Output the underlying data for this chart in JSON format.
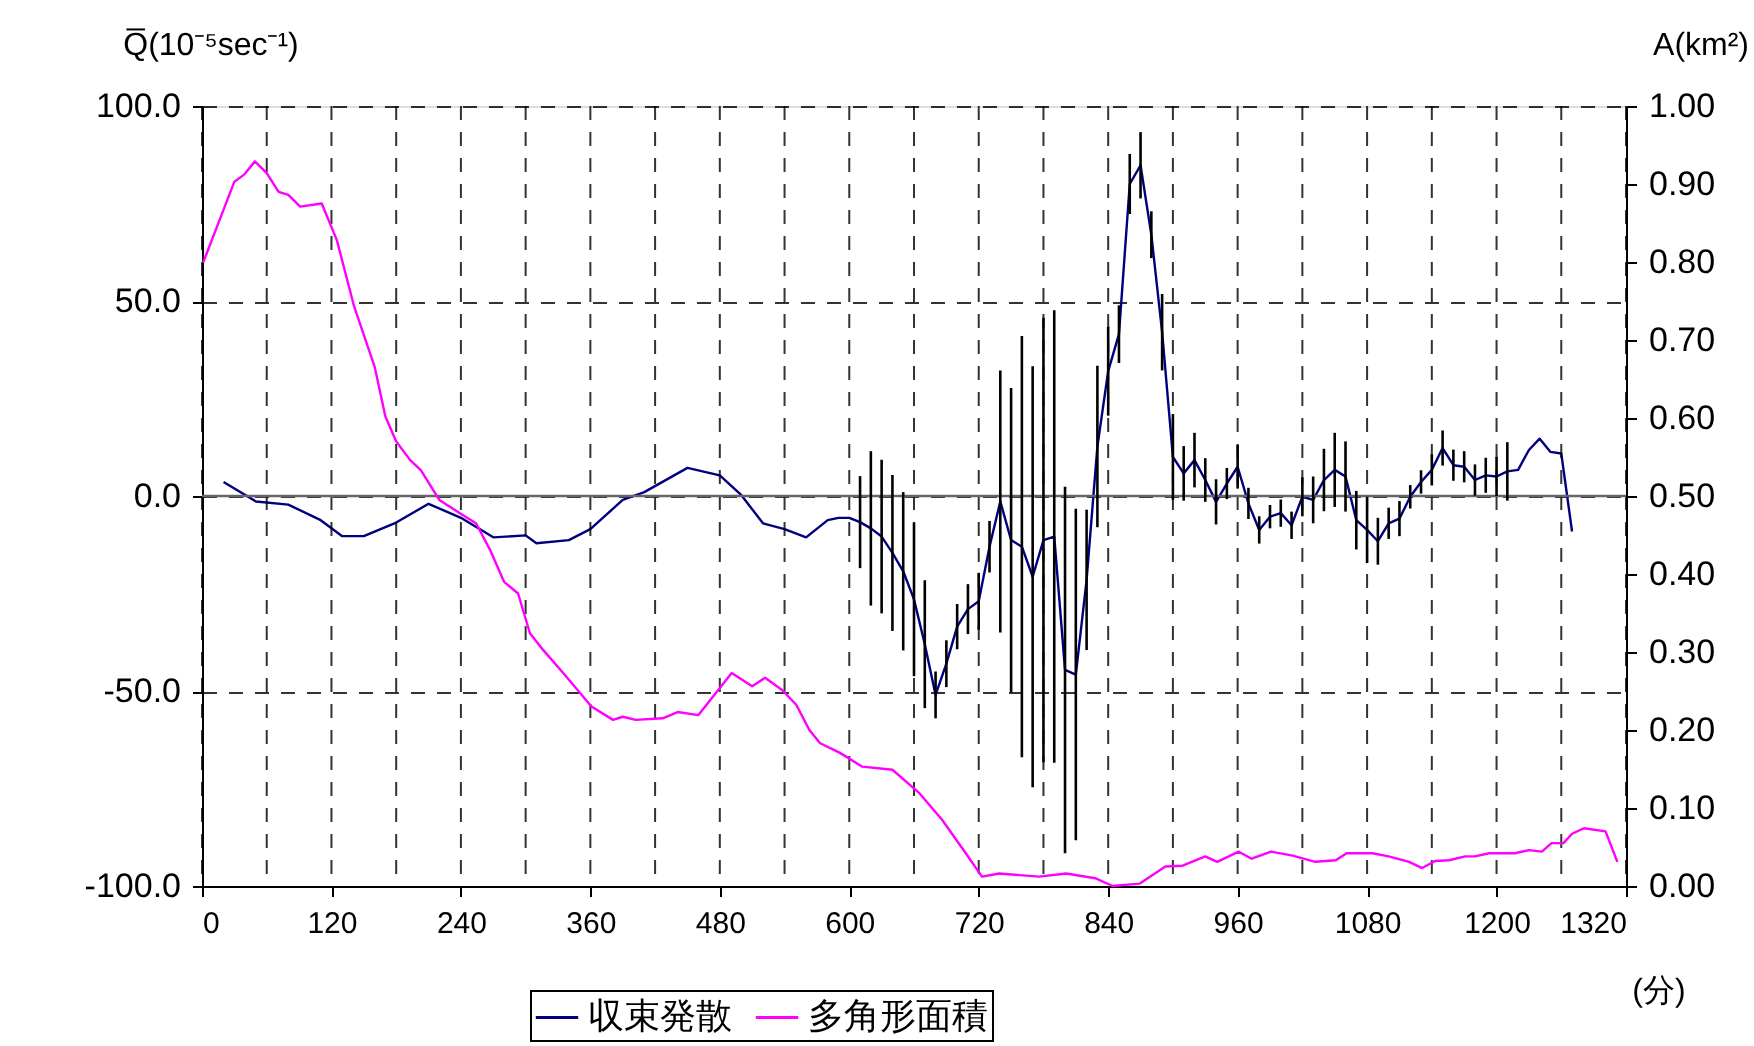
{
  "chart_data": {
    "type": "line",
    "ylabel": "Q̅(10⁻⁵sec⁻¹)",
    "y2label": "A(km²)",
    "xlabel": "(分)",
    "xlim": [
      0,
      1320
    ],
    "xticks": [
      0,
      {
        "value": 60,
        "label": null
      },
      120,
      {
        "value": 180,
        "label": null
      },
      240,
      {
        "value": 300,
        "label": null
      },
      360,
      {
        "value": 420,
        "label": null
      },
      480,
      {
        "value": 540,
        "label": null
      },
      600,
      {
        "value": 660,
        "label": null
      },
      720,
      {
        "value": 780,
        "label": null
      },
      840,
      {
        "value": 900,
        "label": null
      },
      960,
      {
        "value": 1020,
        "label": null
      },
      1080,
      {
        "value": 1140,
        "label": null
      },
      1200,
      {
        "value": 1260,
        "label": null
      },
      1320
    ],
    "ylim": [
      -100,
      100
    ],
    "yticks": [
      {
        "value": -100,
        "label": "-100.0"
      },
      {
        "value": -50,
        "label": "-50.0"
      },
      {
        "value": 0,
        "label": "0.0"
      },
      {
        "value": 50,
        "label": "50.0"
      },
      {
        "value": 100,
        "label": "100.0"
      }
    ],
    "y2lim": [
      0,
      1
    ],
    "y2ticks": [
      {
        "value": 0,
        "label": "0.00"
      },
      {
        "value": 0.1,
        "label": "0.10"
      },
      {
        "value": 0.2,
        "label": "0.20"
      },
      {
        "value": 0.3,
        "label": "0.30"
      },
      {
        "value": 0.4,
        "label": "0.40"
      },
      {
        "value": 0.5,
        "label": "0.50"
      },
      {
        "value": 0.6,
        "label": "0.60"
      },
      {
        "value": 0.7,
        "label": "0.70"
      },
      {
        "value": 0.8,
        "label": "0.80"
      },
      {
        "value": 0.9,
        "label": "0.90"
      },
      {
        "value": 1,
        "label": "1.00"
      }
    ],
    "grid": true,
    "legend": "bottom",
    "line_style": "solid",
    "ref_lines": [
      {
        "axis": "y",
        "value": 0,
        "color": "#666666",
        "line_style": "solid"
      }
    ],
    "series": [
      {
        "name": "収束発散",
        "color": "#000080",
        "x": [
          20,
          50,
          80,
          110,
          130,
          150,
          180,
          210,
          240,
          270,
          300,
          310,
          340,
          360,
          390,
          410,
          450,
          480,
          500,
          520,
          540,
          560,
          580,
          590,
          600,
          610,
          620,
          630,
          640,
          650,
          660,
          670,
          680,
          690,
          700,
          710,
          720,
          730,
          740,
          750,
          760,
          770,
          780,
          790,
          800,
          810,
          820,
          830,
          840,
          850,
          860,
          870,
          880,
          890,
          900,
          910,
          920,
          930,
          940,
          950,
          960,
          970,
          980,
          990,
          1000,
          1010,
          1020,
          1030,
          1040,
          1050,
          1060,
          1070,
          1080,
          1090,
          1100,
          1110,
          1120,
          1130,
          1140,
          1150,
          1160,
          1170,
          1180,
          1190,
          1200,
          1210,
          1220,
          1230,
          1240,
          1250,
          1260,
          1270
        ],
        "values": [
          3.6,
          -1.4,
          -2.2,
          -6.2,
          -10.3,
          -10.3,
          -6.8,
          -2,
          -5.6,
          -10.6,
          -10.1,
          -12.1,
          -11.3,
          -8.5,
          -1,
          1,
          7.2,
          5.3,
          0.2,
          -7,
          -8.5,
          -10.6,
          -6.2,
          -5.6,
          -5.6,
          -6.7,
          -8.3,
          -10.4,
          -14.6,
          -19.3,
          -26.5,
          -38,
          -51,
          -43,
          -33.5,
          -29,
          -27,
          -13,
          -1.4,
          -11.3,
          -13,
          -20.7,
          -11.3,
          -10.4,
          -44.6,
          -45.8,
          -21.5,
          12.7,
          32,
          41.5,
          80,
          84.8,
          67,
          42,
          10,
          5.8,
          9.2,
          4.1,
          -1.5,
          3.2,
          7.5,
          -1.9,
          -8.7,
          -5.3,
          -4.4,
          -7.5,
          -0.2,
          -1,
          4.1,
          6.7,
          5,
          -6.2,
          -8.7,
          -11.6,
          -7,
          -5.8,
          -0.2,
          3.6,
          6.7,
          12.3,
          7.9,
          7.5,
          4.1,
          5.3,
          5,
          6.3,
          6.7,
          11.8,
          14.7,
          11.3,
          10.9,
          -9.1
        ],
        "errors": [
          null,
          null,
          null,
          null,
          null,
          null,
          null,
          null,
          null,
          null,
          null,
          null,
          null,
          null,
          null,
          null,
          null,
          null,
          null,
          null,
          null,
          null,
          null,
          null,
          null,
          11.8,
          19.8,
          19.7,
          20,
          20.3,
          19.7,
          16.4,
          6,
          6,
          5.8,
          6.4,
          7.3,
          6.6,
          33.6,
          39,
          54,
          54,
          57,
          58,
          47,
          42.5,
          18,
          20.7,
          11.4,
          7.4,
          7.7,
          8.5,
          6,
          9.8,
          11,
          7,
          7,
          5.6,
          5.8,
          4,
          5.6,
          4,
          3.5,
          3,
          3.5,
          3.5,
          5,
          6,
          8,
          9.5,
          9,
          7.5,
          8.5,
          6,
          4,
          4.5,
          3,
          3,
          4,
          4.5,
          4,
          4,
          4,
          4.5,
          5,
          7.5,
          null,
          null,
          null,
          null,
          null,
          null
        ]
      },
      {
        "name": "多角形面積",
        "color": "#ff00ff",
        "axis": "y2",
        "x": [
          1,
          30,
          39,
          49,
          60,
          71,
          80,
          91,
          111,
          125,
          141,
          160,
          170,
          180,
          193,
          203,
          220,
          239,
          254,
          267,
          280,
          293,
          304,
          316,
          338,
          361,
          381,
          390,
          402,
          427,
          441,
          460,
          491,
          510,
          522,
          538,
          551,
          563,
          573,
          591,
          612,
          640,
          665,
          686,
          708,
          723,
          739,
          776,
          801,
          828,
          844,
          869,
          893,
          909,
          930,
          941,
          961,
          973,
          991,
          1011,
          1032,
          1051,
          1061,
          1085,
          1100,
          1119,
          1131,
          1143,
          1156,
          1171,
          1180,
          1193,
          1217,
          1230,
          1242,
          1251,
          1262,
          1270,
          1281,
          1301,
          1312
        ],
        "values": [
          0.799,
          0.903,
          0.912,
          0.929,
          0.914,
          0.89,
          0.886,
          0.871,
          0.875,
          0.828,
          0.743,
          0.666,
          0.602,
          0.57,
          0.546,
          0.533,
          0.495,
          0.478,
          0.465,
          0.431,
          0.39,
          0.375,
          0.324,
          0.303,
          0.268,
          0.23,
          0.213,
          0.217,
          0.213,
          0.215,
          0.223,
          0.219,
          0.273,
          0.256,
          0.267,
          0.251,
          0.232,
          0.2,
          0.183,
          0.171,
          0.153,
          0.149,
          0.119,
          0.085,
          0.042,
          0.012,
          0.016,
          0.012,
          0.016,
          0.01,
          0.0,
          0.003,
          0.025,
          0.026,
          0.038,
          0.031,
          0.044,
          0.035,
          0.044,
          0.039,
          0.031,
          0.033,
          0.042,
          0.042,
          0.038,
          0.031,
          0.023,
          0.032,
          0.033,
          0.038,
          0.038,
          0.042,
          0.042,
          0.046,
          0.044,
          0.055,
          0.055,
          0.067,
          0.074,
          0.07,
          0.031
        ]
      }
    ]
  }
}
